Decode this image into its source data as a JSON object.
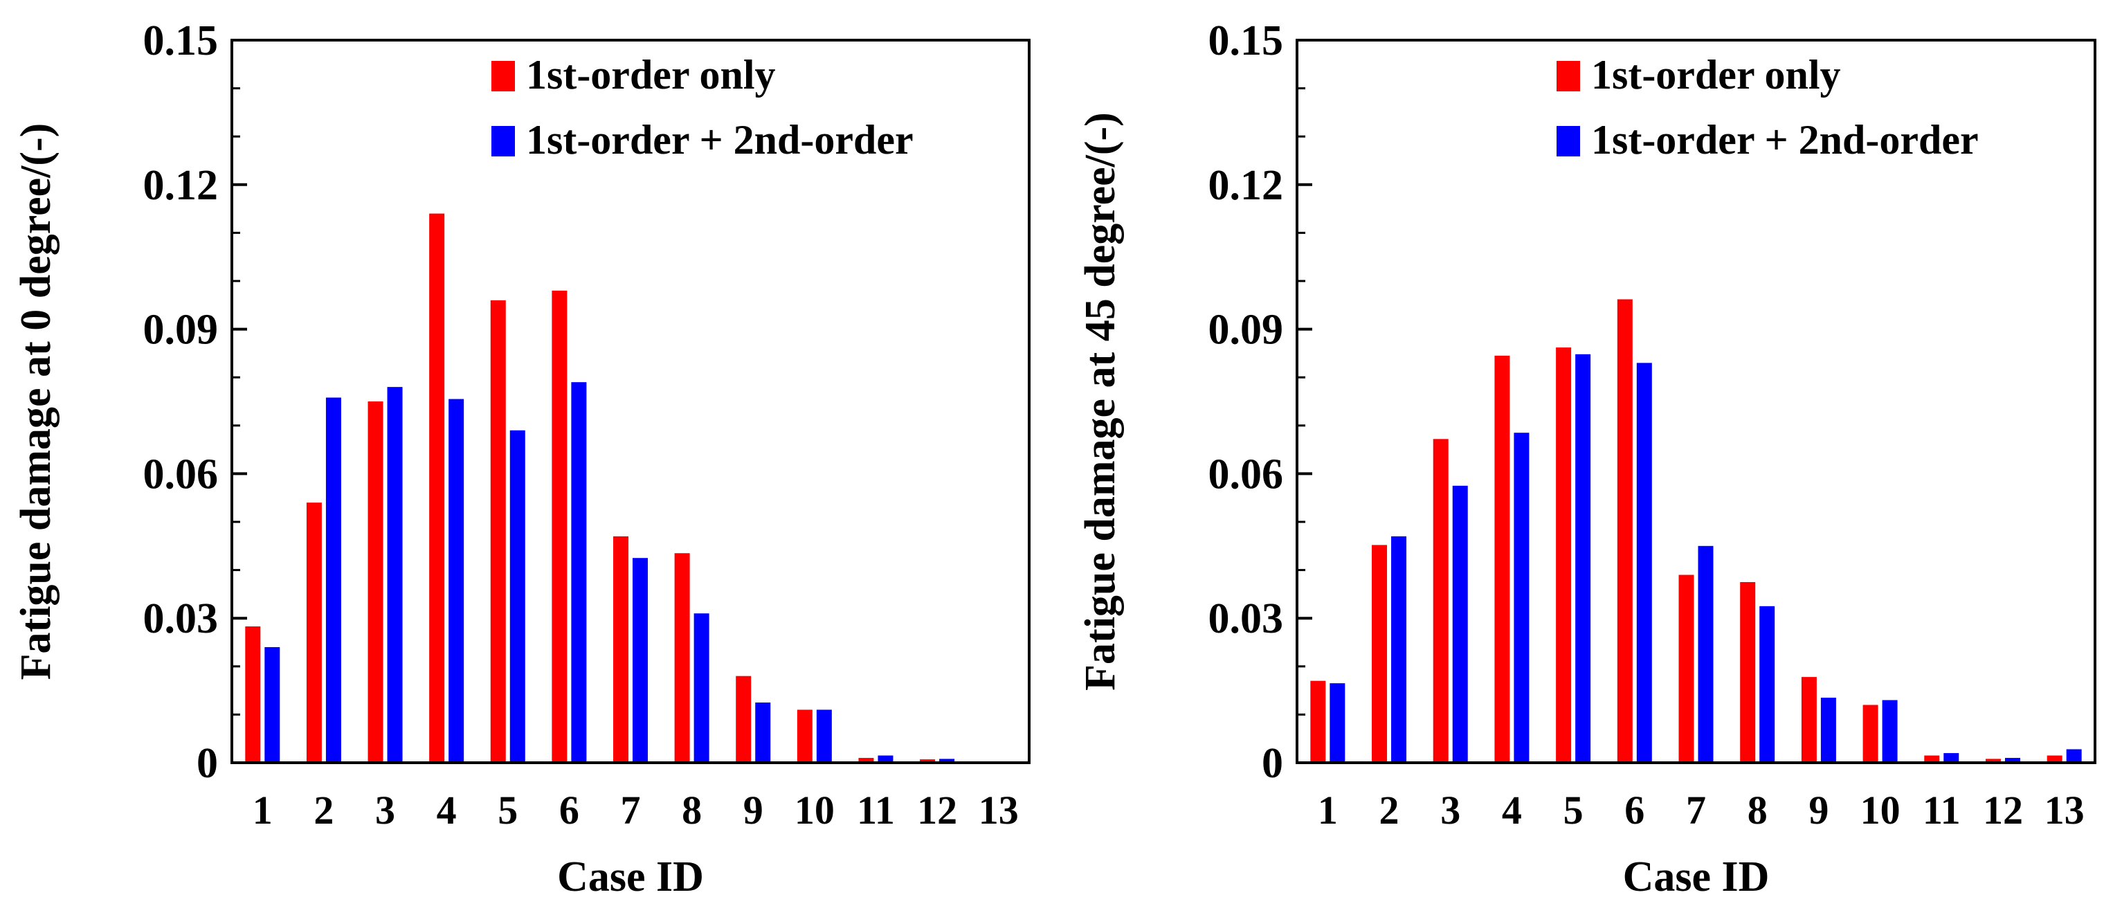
{
  "chart_data": [
    {
      "type": "bar",
      "xlabel": "Case ID",
      "ylabel": "Fatigue damage at 0 degree/(-)",
      "ylim": [
        0,
        0.15
      ],
      "yticks": [
        "0",
        "0.03",
        "0.06",
        "0.09",
        "0.12",
        "0.15"
      ],
      "categories": [
        "1",
        "2",
        "3",
        "4",
        "5",
        "6",
        "7",
        "8",
        "9",
        "10",
        "11",
        "12",
        "13"
      ],
      "legend_position": "top-right",
      "series": [
        {
          "name": "1st-order only",
          "color": "#ff0000",
          "values": [
            0.0283,
            0.054,
            0.075,
            0.114,
            0.096,
            0.098,
            0.047,
            0.0435,
            0.018,
            0.011,
            0.001,
            0.0007,
            0
          ]
        },
        {
          "name": "1st-order + 2nd-order",
          "color": "#0000ff",
          "values": [
            0.024,
            0.0758,
            0.078,
            0.0755,
            0.069,
            0.079,
            0.0425,
            0.031,
            0.0125,
            0.011,
            0.0015,
            0.0008,
            0
          ]
        }
      ]
    },
    {
      "type": "bar",
      "xlabel": "Case ID",
      "ylabel": "Fatigue damage at 45 degree/(-)",
      "ylim": [
        0,
        0.15
      ],
      "yticks": [
        "0",
        "0.03",
        "0.06",
        "0.09",
        "0.12",
        "0.15"
      ],
      "categories": [
        "1",
        "2",
        "3",
        "4",
        "5",
        "6",
        "7",
        "8",
        "9",
        "10",
        "11",
        "12",
        "13"
      ],
      "legend_position": "top-right",
      "series": [
        {
          "name": "1st-order only",
          "color": "#ff0000",
          "values": [
            0.017,
            0.0452,
            0.0672,
            0.0845,
            0.0862,
            0.0962,
            0.039,
            0.0375,
            0.0178,
            0.012,
            0.0015,
            0.0008,
            0.0015
          ]
        },
        {
          "name": "1st-order + 2nd-order",
          "color": "#0000ff",
          "values": [
            0.0165,
            0.047,
            0.0575,
            0.0685,
            0.0848,
            0.083,
            0.045,
            0.0325,
            0.0135,
            0.013,
            0.002,
            0.001,
            0.0028
          ]
        }
      ]
    }
  ]
}
